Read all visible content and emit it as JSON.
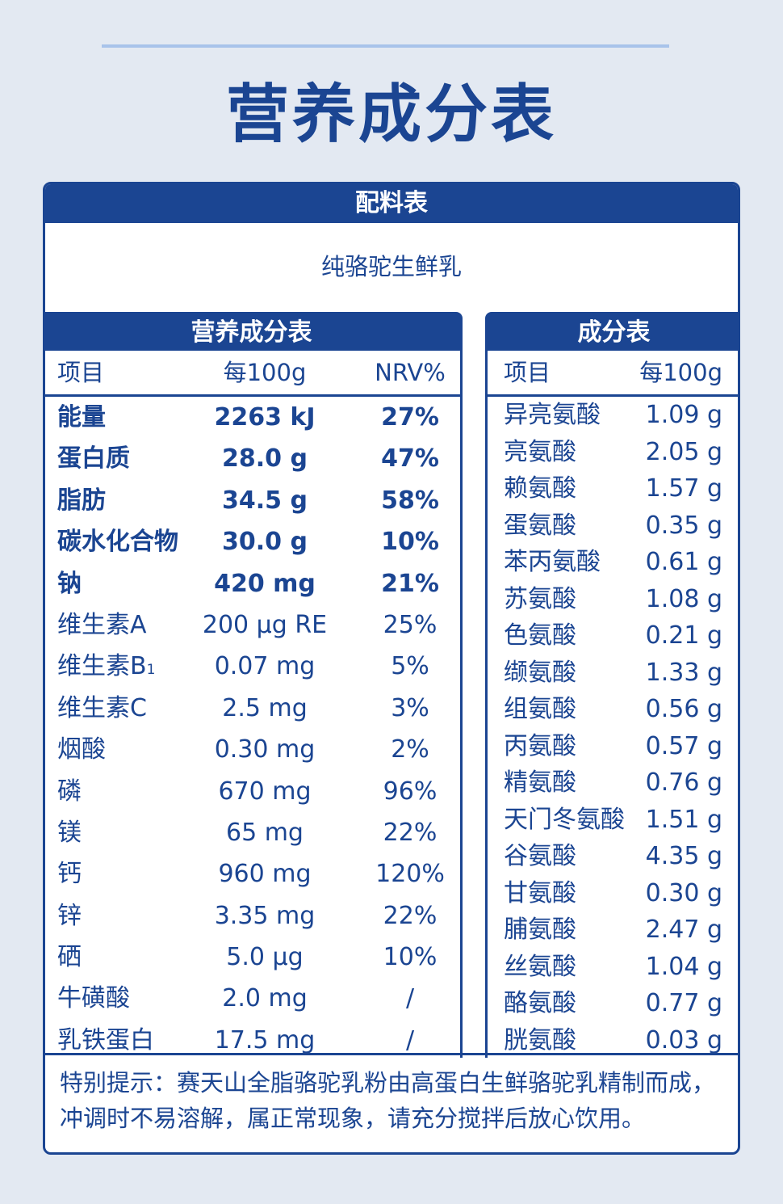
{
  "title": "营养成分表",
  "ingredients": {
    "header": "配料表",
    "text": "纯骆驼生鲜乳"
  },
  "nutrition": {
    "header": "营养成分表",
    "columns": [
      "项目",
      "每100g",
      "NRV%"
    ],
    "rows": [
      {
        "name": "能量",
        "per100g": "2263 kJ",
        "nrv": "27%"
      },
      {
        "name": "蛋白质",
        "per100g": "28.0 g",
        "nrv": "47%"
      },
      {
        "name": "脂肪",
        "per100g": "34.5 g",
        "nrv": "58%"
      },
      {
        "name": "碳水化合物",
        "per100g": "30.0 g",
        "nrv": "10%"
      },
      {
        "name": "钠",
        "per100g": "420 mg",
        "nrv": "21%"
      },
      {
        "name": "维生素A",
        "per100g": "200 μg RE",
        "nrv": "25%"
      },
      {
        "name": "维生素B",
        "name_sub": "1",
        "per100g": "0.07 mg",
        "nrv": "5%"
      },
      {
        "name": "维生素C",
        "per100g": "2.5 mg",
        "nrv": "3%"
      },
      {
        "name": "烟酸",
        "per100g": "0.30 mg",
        "nrv": "2%"
      },
      {
        "name": "磷",
        "per100g": "670 mg",
        "nrv": "96%"
      },
      {
        "name": "镁",
        "per100g": "65 mg",
        "nrv": "22%"
      },
      {
        "name": "钙",
        "per100g": "960 mg",
        "nrv": "120%"
      },
      {
        "name": "锌",
        "per100g": "3.35 mg",
        "nrv": "22%"
      },
      {
        "name": "硒",
        "per100g": "5.0 μg",
        "nrv": "10%"
      },
      {
        "name": "牛磺酸",
        "per100g": "2.0 mg",
        "nrv": "/"
      },
      {
        "name": "乳铁蛋白",
        "per100g": "17.5 mg",
        "nrv": "/"
      }
    ]
  },
  "amino": {
    "header": "成分表",
    "columns": [
      "项目",
      "每100g"
    ],
    "rows": [
      {
        "name": "异亮氨酸",
        "per100g": "1.09 g"
      },
      {
        "name": "亮氨酸",
        "per100g": "2.05 g"
      },
      {
        "name": "赖氨酸",
        "per100g": "1.57 g"
      },
      {
        "name": "蛋氨酸",
        "per100g": "0.35 g"
      },
      {
        "name": "苯丙氨酸",
        "per100g": "0.61 g"
      },
      {
        "name": "苏氨酸",
        "per100g": "1.08 g"
      },
      {
        "name": "色氨酸",
        "per100g": "0.21 g"
      },
      {
        "name": "缬氨酸",
        "per100g": "1.33 g"
      },
      {
        "name": "组氨酸",
        "per100g": "0.56 g"
      },
      {
        "name": "丙氨酸",
        "per100g": "0.57 g"
      },
      {
        "name": "精氨酸",
        "per100g": "0.76 g"
      },
      {
        "name": "天门冬氨酸",
        "per100g": "1.51 g"
      },
      {
        "name": "谷氨酸",
        "per100g": "4.35 g"
      },
      {
        "name": "甘氨酸",
        "per100g": "0.30 g"
      },
      {
        "name": "脯氨酸",
        "per100g": "2.47 g"
      },
      {
        "name": "丝氨酸",
        "per100g": "1.04 g"
      },
      {
        "name": "酪氨酸",
        "per100g": "0.77 g"
      },
      {
        "name": "胱氨酸",
        "per100g": "0.03 g"
      }
    ]
  },
  "note": "特别提示：赛天山全脂骆驼乳粉由高蛋白生鲜骆驼乳精制而成，冲调时不易溶解，属正常现象，请充分搅拌后放心饮用。",
  "colors": {
    "primary": "#1b4592",
    "background": "#e3e9f2",
    "rule": "#a8c3ea"
  }
}
